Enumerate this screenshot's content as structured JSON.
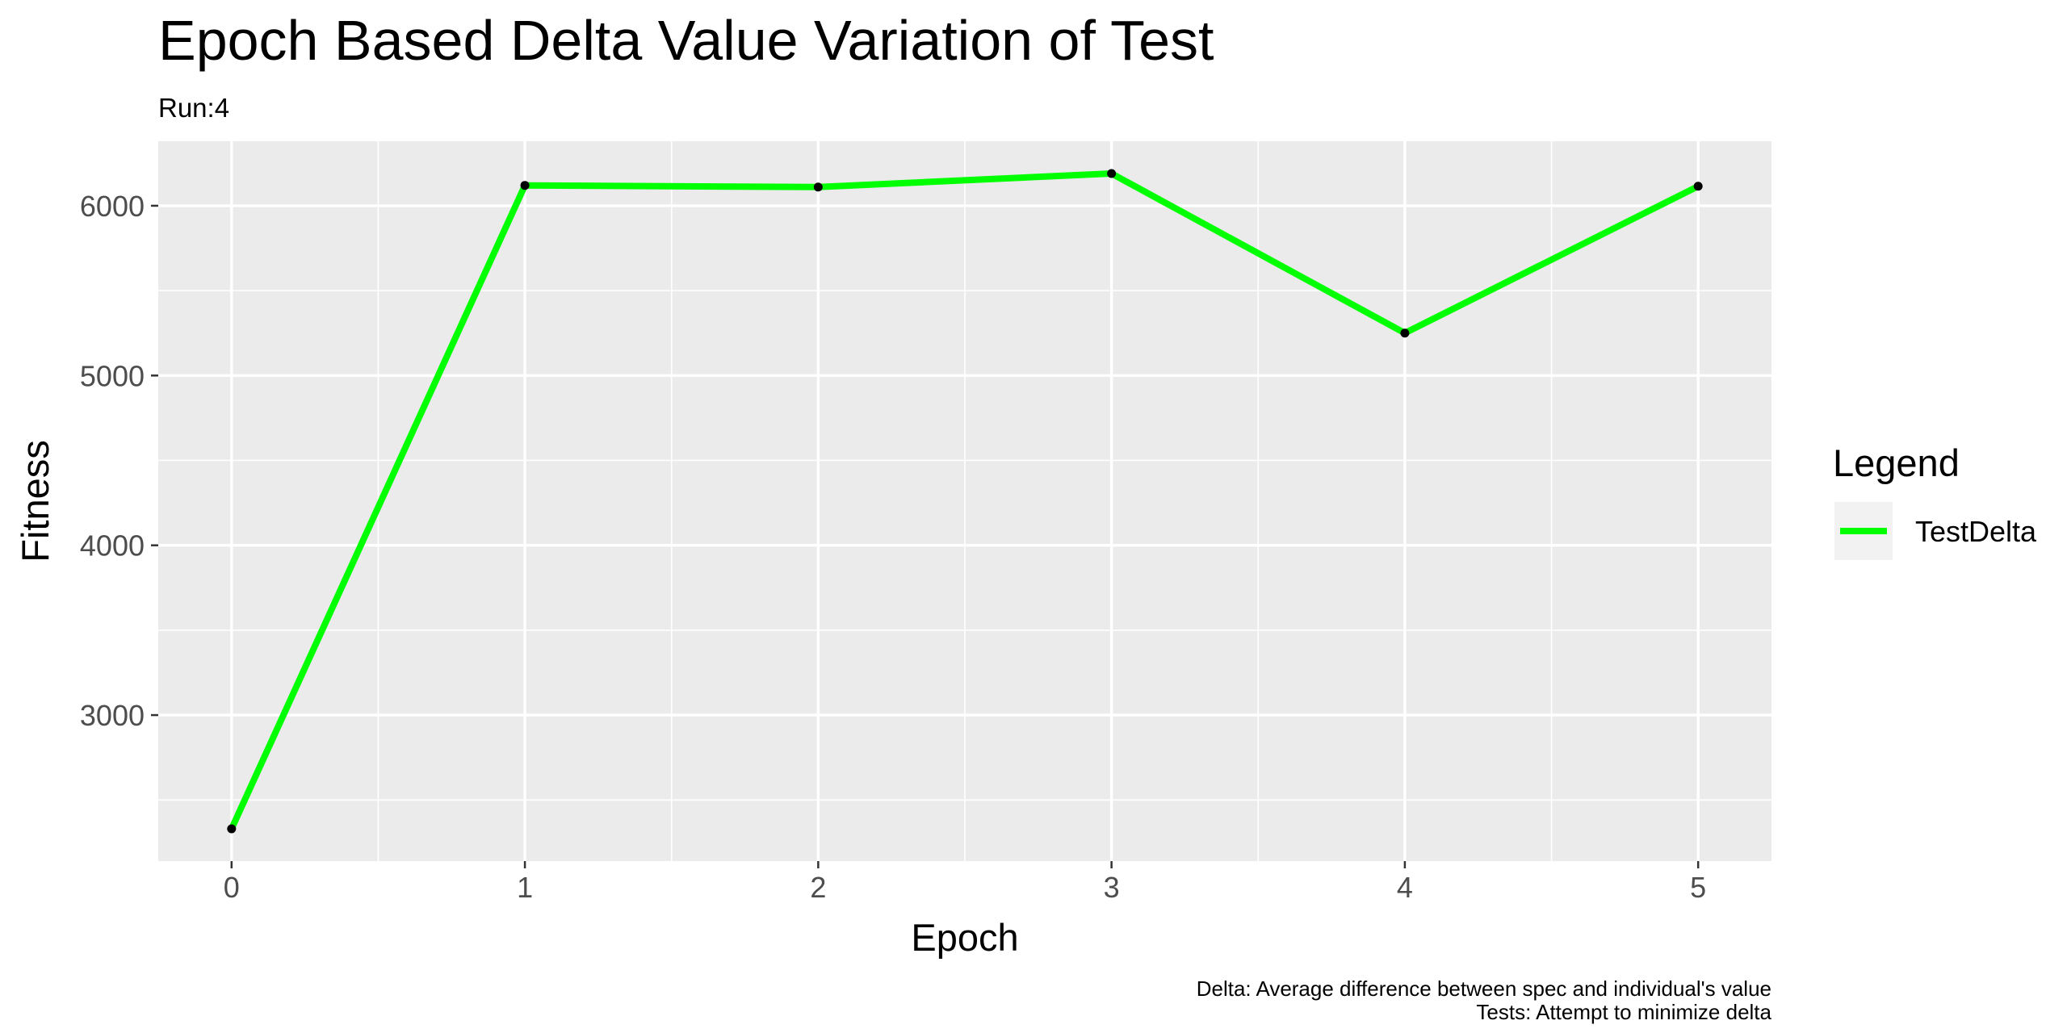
{
  "chart_data": {
    "type": "line",
    "title": "Epoch Based Delta Value Variation of Test",
    "subtitle": "Run:4",
    "xlabel": "Epoch",
    "ylabel": "Fitness",
    "x": [
      0,
      1,
      2,
      3,
      4,
      5
    ],
    "x_ticks": [
      "0",
      "1",
      "2",
      "3",
      "4",
      "5"
    ],
    "y_ticks": [
      "3000",
      "4000",
      "5000",
      "6000"
    ],
    "xlim": [
      -0.25,
      5.25
    ],
    "ylim": [
      2140,
      6380
    ],
    "series": [
      {
        "name": "TestDelta",
        "color": "#00ff00",
        "values": [
          2330,
          6120,
          6110,
          6190,
          5250,
          6115
        ]
      }
    ],
    "legend": {
      "title": "Legend",
      "position": "right"
    },
    "caption": [
      "Delta: Average difference between spec and individual's value",
      "Tests: Attempt to minimize delta"
    ],
    "grid": true,
    "panel_color": "#ebebeb",
    "grid_color": "#ffffff"
  }
}
